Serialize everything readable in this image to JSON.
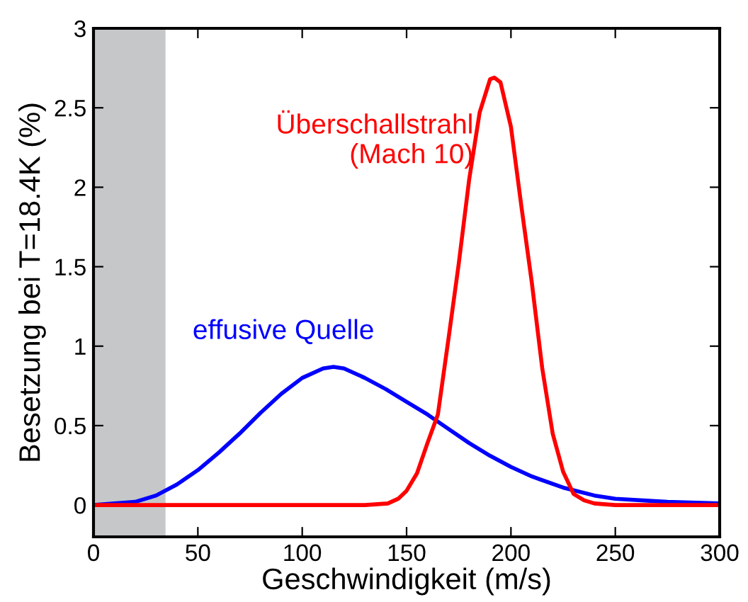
{
  "chart_data": {
    "type": "line",
    "xlabel": "Geschwindigkeit (m/s)",
    "ylabel": "Besetzung bei T=18.4K (%)",
    "xlim": [
      0,
      300
    ],
    "xticks": [
      0,
      50,
      100,
      150,
      200,
      250,
      300
    ],
    "ylim": [
      -0.2,
      3
    ],
    "yticks": [
      0,
      0.5,
      1,
      1.5,
      2,
      2.5,
      3
    ],
    "grid": false,
    "bands": [
      {
        "axis": "x",
        "from": 0,
        "to": 34.5,
        "color": "#c6c7c9"
      }
    ],
    "series": [
      {
        "name": "effusive Quelle",
        "color": "#0000ff",
        "x": [
          0,
          10,
          20,
          30,
          40,
          50,
          60,
          70,
          80,
          90,
          100,
          110,
          115,
          120,
          130,
          140,
          150,
          160,
          170,
          180,
          190,
          200,
          210,
          225,
          240,
          250,
          275,
          300
        ],
        "values": [
          0,
          0.01,
          0.02,
          0.06,
          0.13,
          0.22,
          0.33,
          0.45,
          0.58,
          0.7,
          0.8,
          0.86,
          0.87,
          0.86,
          0.8,
          0.73,
          0.65,
          0.57,
          0.48,
          0.39,
          0.31,
          0.24,
          0.18,
          0.11,
          0.06,
          0.04,
          0.02,
          0.01
        ]
      },
      {
        "name": "Überschallstrahl\n(Mach 10)",
        "color": "#ff0000",
        "x": [
          0,
          130,
          141,
          146,
          150,
          155,
          160,
          165,
          170,
          175,
          180,
          185,
          190,
          192,
          195,
          200,
          205,
          210,
          215,
          220,
          225,
          230,
          235,
          240,
          250,
          300
        ],
        "values": [
          0,
          0,
          0.01,
          0.04,
          0.09,
          0.2,
          0.39,
          0.57,
          1.04,
          1.52,
          2.05,
          2.47,
          2.68,
          2.69,
          2.66,
          2.38,
          1.88,
          1.4,
          0.86,
          0.45,
          0.21,
          0.07,
          0.03,
          0.01,
          0,
          0
        ]
      }
    ]
  }
}
